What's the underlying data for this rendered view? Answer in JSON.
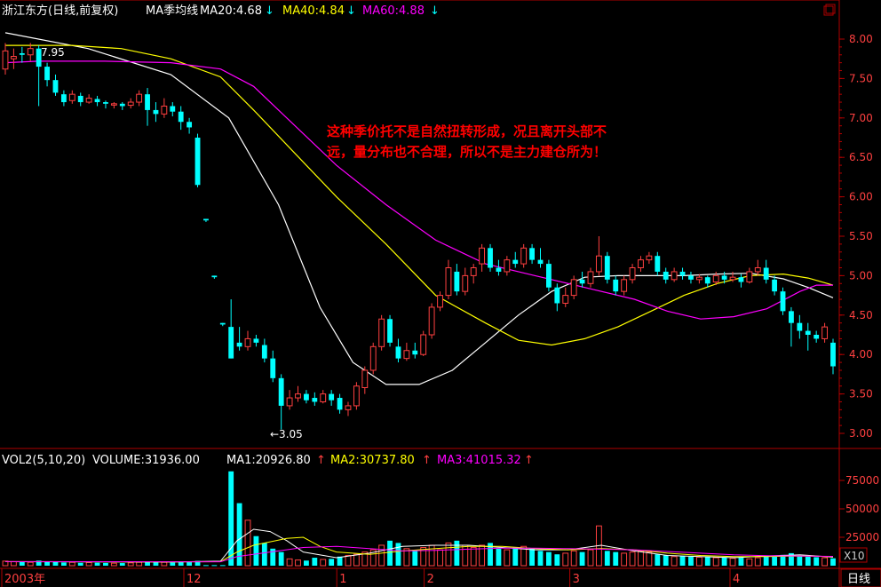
{
  "header": {
    "stock": "浙江东方(日线,前复权)",
    "indicator": "MA季均线",
    "ma20": "MA20:4.68",
    "ma40": "MA40:4.84",
    "ma60": "MA60:4.88",
    "down_arrow": "↓"
  },
  "volume_header": {
    "indicator": "VOL2(5,10,20)",
    "volume": "VOLUME:31936.00",
    "ma1": "MA1:20926.80",
    "ma2": "MA2:30737.80",
    "ma3": "MA3:41015.32",
    "up_arrow": "↑"
  },
  "annotation": {
    "line1": "这种季价托不是自然扭转形成，况且离开头部不",
    "line2": "远，量分布也不合理，所以不是主力建仓所为！"
  },
  "labels": {
    "high": "7.95",
    "low": "←3.05",
    "corner_tab": "日线",
    "vol_scale": "X10"
  },
  "x_axis": [
    "2003年",
    "12",
    "1",
    "2",
    "3",
    "4"
  ],
  "colors": {
    "up": "#ff4040",
    "down": "#00ffff",
    "ma_white": "#ffffff",
    "ma_yellow": "#ffff00",
    "ma_magenta": "#ff00ff",
    "frame": "#b00000",
    "annotation": "#ff0000"
  },
  "chart_data": {
    "type": "candlestick",
    "price_axis": {
      "ticks": [
        3.0,
        3.5,
        4.0,
        4.5,
        5.0,
        5.5,
        6.0,
        6.5,
        7.0,
        7.5,
        8.0
      ],
      "range": [
        2.8,
        8.1
      ]
    },
    "volume_axis": {
      "ticks": [
        25000,
        50000,
        75000
      ],
      "range": [
        0,
        95000
      ]
    },
    "candles": [
      [
        7.62,
        7.85,
        7.95,
        7.55
      ],
      [
        7.75,
        7.78,
        7.88,
        7.62
      ],
      [
        7.82,
        7.8,
        7.9,
        7.7
      ],
      [
        7.8,
        7.88,
        7.95,
        7.72
      ],
      [
        7.88,
        7.65,
        7.92,
        7.15
      ],
      [
        7.65,
        7.48,
        7.7,
        7.4
      ],
      [
        7.48,
        7.32,
        7.55,
        7.28
      ],
      [
        7.3,
        7.2,
        7.35,
        7.15
      ],
      [
        7.22,
        7.3,
        7.35,
        7.18
      ],
      [
        7.28,
        7.2,
        7.32,
        7.15
      ],
      [
        7.2,
        7.25,
        7.3,
        7.18
      ],
      [
        7.24,
        7.2,
        7.28,
        7.15
      ],
      [
        7.2,
        7.18,
        7.22,
        7.12
      ],
      [
        7.18,
        7.18,
        7.2,
        7.12
      ],
      [
        7.18,
        7.15,
        7.2,
        7.1
      ],
      [
        7.16,
        7.2,
        7.25,
        7.12
      ],
      [
        7.2,
        7.3,
        7.35,
        7.15
      ],
      [
        7.3,
        7.1,
        7.38,
        6.9
      ],
      [
        7.1,
        7.05,
        7.2,
        6.95
      ],
      [
        7.05,
        7.15,
        7.25,
        7.0
      ],
      [
        7.15,
        7.08,
        7.2,
        7.02
      ],
      [
        7.08,
        6.95,
        7.15,
        6.85
      ],
      [
        6.95,
        6.88,
        7.0,
        6.8
      ],
      [
        6.75,
        6.15,
        6.8,
        6.12
      ],
      [
        5.72,
        5.7,
        5.72,
        5.68
      ],
      [
        5.0,
        4.98,
        5.0,
        4.96
      ],
      [
        4.4,
        4.38,
        4.4,
        4.36
      ],
      [
        4.35,
        3.95,
        4.7,
        3.95
      ],
      [
        4.15,
        4.1,
        4.35,
        4.05
      ],
      [
        4.1,
        4.2,
        4.3,
        4.05
      ],
      [
        4.2,
        4.15,
        4.25,
        4.1
      ],
      [
        4.12,
        3.95,
        4.2,
        3.9
      ],
      [
        3.95,
        3.7,
        4.05,
        3.65
      ],
      [
        3.7,
        3.35,
        3.75,
        3.05
      ],
      [
        3.35,
        3.45,
        3.55,
        3.3
      ],
      [
        3.45,
        3.5,
        3.6,
        3.4
      ],
      [
        3.5,
        3.42,
        3.55,
        3.38
      ],
      [
        3.45,
        3.4,
        3.52,
        3.35
      ],
      [
        3.4,
        3.5,
        3.55,
        3.38
      ],
      [
        3.5,
        3.42,
        3.55,
        3.35
      ],
      [
        3.45,
        3.3,
        3.5,
        3.25
      ],
      [
        3.3,
        3.35,
        3.4,
        3.22
      ],
      [
        3.35,
        3.6,
        3.65,
        3.3
      ],
      [
        3.58,
        3.8,
        3.85,
        3.5
      ],
      [
        3.8,
        4.1,
        4.15,
        3.75
      ],
      [
        4.1,
        4.45,
        4.5,
        4.05
      ],
      [
        4.45,
        4.15,
        4.5,
        4.1
      ],
      [
        4.1,
        3.95,
        4.2,
        3.9
      ],
      [
        3.95,
        4.05,
        4.15,
        3.92
      ],
      [
        4.05,
        4.0,
        4.15,
        3.95
      ],
      [
        4.0,
        4.25,
        4.3,
        3.98
      ],
      [
        4.25,
        4.6,
        4.65,
        4.2
      ],
      [
        4.6,
        4.75,
        4.8,
        4.55
      ],
      [
        4.75,
        5.1,
        5.2,
        4.7
      ],
      [
        5.05,
        4.8,
        5.15,
        4.75
      ],
      [
        4.8,
        5.0,
        5.1,
        4.75
      ],
      [
        5.0,
        5.1,
        5.15,
        4.9
      ],
      [
        5.15,
        5.35,
        5.4,
        5.05
      ],
      [
        5.35,
        5.1,
        5.4,
        5.05
      ],
      [
        5.1,
        5.05,
        5.2,
        5.0
      ],
      [
        5.05,
        5.2,
        5.25,
        5.0
      ],
      [
        5.2,
        5.15,
        5.3,
        5.1
      ],
      [
        5.15,
        5.35,
        5.4,
        5.1
      ],
      [
        5.35,
        5.2,
        5.4,
        5.15
      ],
      [
        5.2,
        5.15,
        5.35,
        5.1
      ],
      [
        5.15,
        4.85,
        5.2,
        4.8
      ],
      [
        4.85,
        4.65,
        4.9,
        4.55
      ],
      [
        4.65,
        4.75,
        4.85,
        4.6
      ],
      [
        4.75,
        4.95,
        5.0,
        4.7
      ],
      [
        4.95,
        4.9,
        5.05,
        4.85
      ],
      [
        4.9,
        5.05,
        5.1,
        4.85
      ],
      [
        5.05,
        5.25,
        5.5,
        5.0
      ],
      [
        5.25,
        4.95,
        5.3,
        4.9
      ],
      [
        4.95,
        4.8,
        5.0,
        4.75
      ],
      [
        4.8,
        4.95,
        5.0,
        4.75
      ],
      [
        4.95,
        5.1,
        5.15,
        4.9
      ],
      [
        5.1,
        5.2,
        5.25,
        5.05
      ],
      [
        5.2,
        5.25,
        5.3,
        5.15
      ],
      [
        5.25,
        5.05,
        5.3,
        5.0
      ],
      [
        5.05,
        4.95,
        5.1,
        4.9
      ],
      [
        4.95,
        5.05,
        5.1,
        4.92
      ],
      [
        5.05,
        5.0,
        5.1,
        4.95
      ],
      [
        5.0,
        4.95,
        5.05,
        4.9
      ],
      [
        4.95,
        4.98,
        5.02,
        4.9
      ],
      [
        4.98,
        4.9,
        5.0,
        4.85
      ],
      [
        4.92,
        5.0,
        5.05,
        4.88
      ],
      [
        5.0,
        4.95,
        5.05,
        4.9
      ],
      [
        4.95,
        4.98,
        5.05,
        4.92
      ],
      [
        4.98,
        4.92,
        5.02,
        4.85
      ],
      [
        4.92,
        5.05,
        5.1,
        4.9
      ],
      [
        5.05,
        5.1,
        5.2,
        5.0
      ],
      [
        5.1,
        4.95,
        5.2,
        4.9
      ],
      [
        4.95,
        4.8,
        5.0,
        4.75
      ],
      [
        4.8,
        4.55,
        4.85,
        4.5
      ],
      [
        4.55,
        4.4,
        4.6,
        4.1
      ],
      [
        4.4,
        4.3,
        4.5,
        4.2
      ],
      [
        4.3,
        4.25,
        4.4,
        4.05
      ],
      [
        4.25,
        4.2,
        4.3,
        4.15
      ],
      [
        4.2,
        4.35,
        4.4,
        4.15
      ],
      [
        4.15,
        3.85,
        4.2,
        3.75
      ]
    ],
    "volumes": [
      4000,
      3500,
      3800,
      3000,
      4500,
      3800,
      3200,
      2800,
      3000,
      2500,
      2800,
      2600,
      2400,
      2200,
      2300,
      2500,
      3000,
      3500,
      3200,
      3000,
      2800,
      3600,
      3400,
      4200,
      500,
      500,
      500,
      83000,
      55000,
      40000,
      26000,
      20000,
      15000,
      12000,
      6000,
      5000,
      4500,
      7000,
      5500,
      6000,
      8000,
      9000,
      10000,
      12000,
      14000,
      18000,
      22000,
      20000,
      15000,
      14000,
      16000,
      18000,
      14000,
      20000,
      22000,
      18000,
      16000,
      18000,
      20000,
      15000,
      14000,
      16000,
      17000,
      15000,
      13000,
      12000,
      10000,
      11000,
      13000,
      12000,
      14000,
      35000,
      13000,
      12000,
      11000,
      12000,
      13000,
      12000,
      10000,
      9000,
      8000,
      8500,
      8000,
      7500,
      8000,
      7000,
      7500,
      6500,
      7000,
      6000,
      7000,
      9000,
      8000,
      9500,
      11000,
      9000,
      8000,
      7500,
      7000,
      6500
    ],
    "ma_series": [
      {
        "name": "MA20",
        "color": "#ffffff",
        "points": [
          [
            0,
            8.08
          ],
          [
            10,
            7.88
          ],
          [
            20,
            7.55
          ],
          [
            27,
            7.0
          ],
          [
            33,
            5.9
          ],
          [
            38,
            4.6
          ],
          [
            42,
            3.9
          ],
          [
            46,
            3.62
          ],
          [
            50,
            3.62
          ],
          [
            54,
            3.8
          ],
          [
            58,
            4.15
          ],
          [
            62,
            4.5
          ],
          [
            66,
            4.8
          ],
          [
            70,
            4.98
          ],
          [
            74,
            5.0
          ],
          [
            78,
            5.0
          ],
          [
            82,
            5.0
          ],
          [
            86,
            5.02
          ],
          [
            90,
            5.03
          ],
          [
            94,
            4.96
          ],
          [
            97,
            4.85
          ],
          [
            100,
            4.72
          ]
        ]
      },
      {
        "name": "MA40",
        "color": "#ffff00",
        "points": [
          [
            0,
            7.92
          ],
          [
            8,
            7.92
          ],
          [
            14,
            7.88
          ],
          [
            20,
            7.75
          ],
          [
            26,
            7.52
          ],
          [
            30,
            7.1
          ],
          [
            35,
            6.55
          ],
          [
            40,
            6.0
          ],
          [
            46,
            5.4
          ],
          [
            52,
            4.75
          ],
          [
            58,
            4.4
          ],
          [
            62,
            4.18
          ],
          [
            66,
            4.12
          ],
          [
            70,
            4.2
          ],
          [
            74,
            4.35
          ],
          [
            78,
            4.55
          ],
          [
            82,
            4.75
          ],
          [
            86,
            4.9
          ],
          [
            90,
            5.0
          ],
          [
            94,
            5.02
          ],
          [
            97,
            4.97
          ],
          [
            100,
            4.88
          ]
        ]
      },
      {
        "name": "MA60",
        "color": "#ff00ff",
        "points": [
          [
            0,
            7.7
          ],
          [
            4,
            7.72
          ],
          [
            12,
            7.72
          ],
          [
            20,
            7.7
          ],
          [
            26,
            7.62
          ],
          [
            30,
            7.4
          ],
          [
            34,
            7.0
          ],
          [
            40,
            6.4
          ],
          [
            46,
            5.9
          ],
          [
            52,
            5.45
          ],
          [
            58,
            5.15
          ],
          [
            64,
            5.0
          ],
          [
            70,
            4.85
          ],
          [
            76,
            4.7
          ],
          [
            80,
            4.55
          ],
          [
            84,
            4.45
          ],
          [
            88,
            4.48
          ],
          [
            92,
            4.58
          ],
          [
            96,
            4.8
          ],
          [
            98,
            4.88
          ],
          [
            100,
            4.88
          ]
        ]
      }
    ],
    "vol_ma_series": [
      {
        "name": "MA1",
        "color": "#ffffff",
        "points": [
          [
            0,
            3500
          ],
          [
            20,
            3200
          ],
          [
            26,
            4000
          ],
          [
            28,
            22000
          ],
          [
            30,
            32000
          ],
          [
            32,
            30000
          ],
          [
            34,
            22000
          ],
          [
            36,
            12000
          ],
          [
            40,
            7000
          ],
          [
            44,
            11000
          ],
          [
            48,
            17000
          ],
          [
            52,
            18000
          ],
          [
            56,
            18000
          ],
          [
            60,
            16000
          ],
          [
            64,
            14000
          ],
          [
            68,
            14000
          ],
          [
            72,
            18000
          ],
          [
            76,
            13000
          ],
          [
            80,
            9000
          ],
          [
            84,
            8000
          ],
          [
            88,
            7000
          ],
          [
            92,
            8500
          ],
          [
            96,
            9500
          ],
          [
            100,
            7500
          ]
        ]
      },
      {
        "name": "MA2",
        "color": "#ffff00",
        "points": [
          [
            0,
            3600
          ],
          [
            20,
            3300
          ],
          [
            26,
            3500
          ],
          [
            28,
            12000
          ],
          [
            30,
            18000
          ],
          [
            34,
            24000
          ],
          [
            36,
            25000
          ],
          [
            38,
            17000
          ],
          [
            40,
            12000
          ],
          [
            44,
            10000
          ],
          [
            48,
            13000
          ],
          [
            52,
            15000
          ],
          [
            56,
            17000
          ],
          [
            60,
            17000
          ],
          [
            64,
            15000
          ],
          [
            68,
            14000
          ],
          [
            72,
            15000
          ],
          [
            76,
            14000
          ],
          [
            80,
            11000
          ],
          [
            84,
            9000
          ],
          [
            88,
            8000
          ],
          [
            92,
            8000
          ],
          [
            96,
            8500
          ],
          [
            100,
            8000
          ]
        ]
      },
      {
        "name": "MA3",
        "color": "#ff00ff",
        "points": [
          [
            0,
            3600
          ],
          [
            20,
            3400
          ],
          [
            26,
            3400
          ],
          [
            28,
            8000
          ],
          [
            32,
            12000
          ],
          [
            36,
            16000
          ],
          [
            40,
            17000
          ],
          [
            44,
            15000
          ],
          [
            48,
            13000
          ],
          [
            52,
            13500
          ],
          [
            56,
            14500
          ],
          [
            60,
            15500
          ],
          [
            64,
            15500
          ],
          [
            68,
            15000
          ],
          [
            72,
            14500
          ],
          [
            76,
            14000
          ],
          [
            80,
            12500
          ],
          [
            84,
            11000
          ],
          [
            88,
            9500
          ],
          [
            92,
            8800
          ],
          [
            96,
            8500
          ],
          [
            100,
            8200
          ]
        ]
      }
    ]
  }
}
